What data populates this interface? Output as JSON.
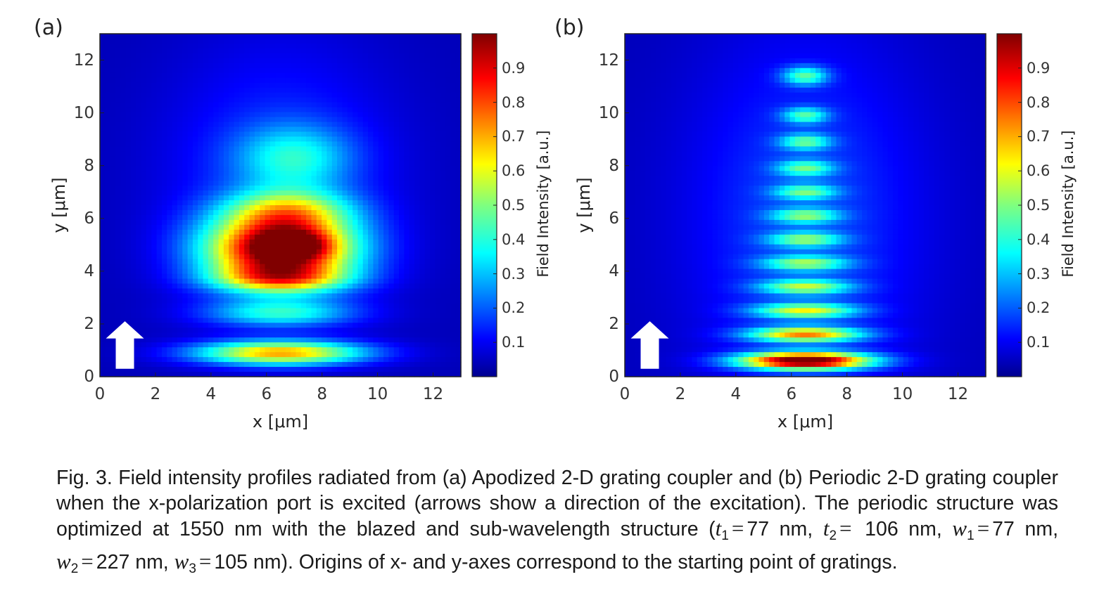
{
  "panels": {
    "a": {
      "label": "(a)"
    },
    "b": {
      "label": "(b)"
    }
  },
  "chart_data": [
    {
      "type": "heatmap",
      "panel": "(a)",
      "xlabel": "x [μm]",
      "ylabel": "y [μm]",
      "colorbar_label": "Field Intensity [a.u.]",
      "colormap": "jet",
      "xlim": [
        0,
        13
      ],
      "ylim": [
        0,
        13
      ],
      "xticks": [
        0,
        2,
        4,
        6,
        8,
        10,
        12
      ],
      "yticks": [
        0,
        2,
        4,
        6,
        8,
        10,
        12
      ],
      "colorbar_ticks": [
        0.1,
        0.2,
        0.3,
        0.4,
        0.5,
        0.6,
        0.7,
        0.8,
        0.9
      ],
      "colorbar_range": [
        0,
        1
      ],
      "peak": {
        "x": 7,
        "y": 4.8,
        "value": 1.0
      },
      "features": [
        {
          "x": 6.5,
          "y": 4.8,
          "sx": 2.6,
          "sy": 1.3,
          "value": 0.95
        },
        {
          "x": 7.0,
          "y": 5.0,
          "sx": 1.2,
          "sy": 0.5,
          "value": 0.25
        },
        {
          "x": 6.5,
          "y": 3.7,
          "sx": 2.4,
          "sy": 0.5,
          "value": 0.35
        },
        {
          "x": 6.8,
          "y": 6.3,
          "sx": 2.2,
          "sy": 0.8,
          "value": 0.35
        },
        {
          "x": 6.5,
          "y": 0.9,
          "sx": 3.0,
          "sy": 0.45,
          "value": 0.65
        },
        {
          "x": 6.5,
          "y": 2.4,
          "sx": 2.6,
          "sy": 0.5,
          "value": 0.3
        },
        {
          "x": 7.0,
          "y": 8.3,
          "sx": 2.0,
          "sy": 1.2,
          "value": 0.25
        },
        {
          "x": 6.5,
          "y": 7.5,
          "sx": 4.0,
          "sy": 5.0,
          "value": 0.13
        }
      ],
      "annotation": "white arrow pointing up (excitation direction)"
    },
    {
      "type": "heatmap",
      "panel": "(b)",
      "xlabel": "x [μm]",
      "ylabel": "y [μm]",
      "colorbar_label": "Field Intensity [a.u.]",
      "colormap": "jet",
      "xlim": [
        0,
        13
      ],
      "ylim": [
        0,
        13
      ],
      "xticks": [
        0,
        2,
        4,
        6,
        8,
        10,
        12
      ],
      "yticks": [
        0,
        2,
        4,
        6,
        8,
        10,
        12
      ],
      "colorbar_ticks": [
        0.1,
        0.2,
        0.3,
        0.4,
        0.5,
        0.6,
        0.7,
        0.8,
        0.9
      ],
      "colorbar_range": [
        0,
        1
      ],
      "peak": {
        "x": 6.5,
        "y": 0.6,
        "value": 1.0
      },
      "features": [
        {
          "x": 6.5,
          "y": 0.6,
          "sx": 2.3,
          "sy": 0.32,
          "value": 1.0
        },
        {
          "x": 6.5,
          "y": 1.6,
          "sx": 2.0,
          "sy": 0.28,
          "value": 0.62
        },
        {
          "x": 6.5,
          "y": 2.5,
          "sx": 1.8,
          "sy": 0.28,
          "value": 0.48
        },
        {
          "x": 6.5,
          "y": 3.4,
          "sx": 1.6,
          "sy": 0.28,
          "value": 0.42
        },
        {
          "x": 6.5,
          "y": 4.3,
          "sx": 1.5,
          "sy": 0.28,
          "value": 0.38
        },
        {
          "x": 6.5,
          "y": 5.2,
          "sx": 1.3,
          "sy": 0.28,
          "value": 0.36
        },
        {
          "x": 6.5,
          "y": 6.1,
          "sx": 1.2,
          "sy": 0.28,
          "value": 0.35
        },
        {
          "x": 6.5,
          "y": 7.0,
          "sx": 1.1,
          "sy": 0.28,
          "value": 0.33
        },
        {
          "x": 6.5,
          "y": 7.9,
          "sx": 1.0,
          "sy": 0.3,
          "value": 0.33
        },
        {
          "x": 6.5,
          "y": 8.9,
          "sx": 0.9,
          "sy": 0.3,
          "value": 0.33
        },
        {
          "x": 6.5,
          "y": 9.9,
          "sx": 0.8,
          "sy": 0.3,
          "value": 0.32
        },
        {
          "x": 6.5,
          "y": 11.4,
          "sx": 0.8,
          "sy": 0.35,
          "value": 0.35
        },
        {
          "x": 6.5,
          "y": 6.0,
          "sx": 4.2,
          "sy": 7.0,
          "value": 0.14
        }
      ],
      "annotation": "white arrow pointing up (excitation direction)"
    }
  ],
  "caption": {
    "line1": "Fig. 3. Field intensity profiles radiated from (a) Apodized 2-D grating coupler and (b) Periodic 2-D grating",
    "line2": "coupler when the x-polarization port is excited (arrows show a direction of the excitation). The periodic",
    "line3a": "structure was optimized at 1550 nm with the blazed and sub-wavelength structure (",
    "t1": "t",
    "t1_sub": "1",
    "eq": "=",
    "t1_val": "77 nm,",
    "t2": "t",
    "t2_sub": "2",
    "line4a": "106 nm,",
    "w1": "w",
    "w1_sub": "1",
    "w1_val": "77 nm,",
    "w2": "w",
    "w2_sub": "2",
    "w2_val": "227 nm,",
    "w3": "w",
    "w3_sub": "3",
    "w3_val": "105 nm). Origins of x- and y-axes correspond to the starting",
    "line5": "point of gratings."
  }
}
